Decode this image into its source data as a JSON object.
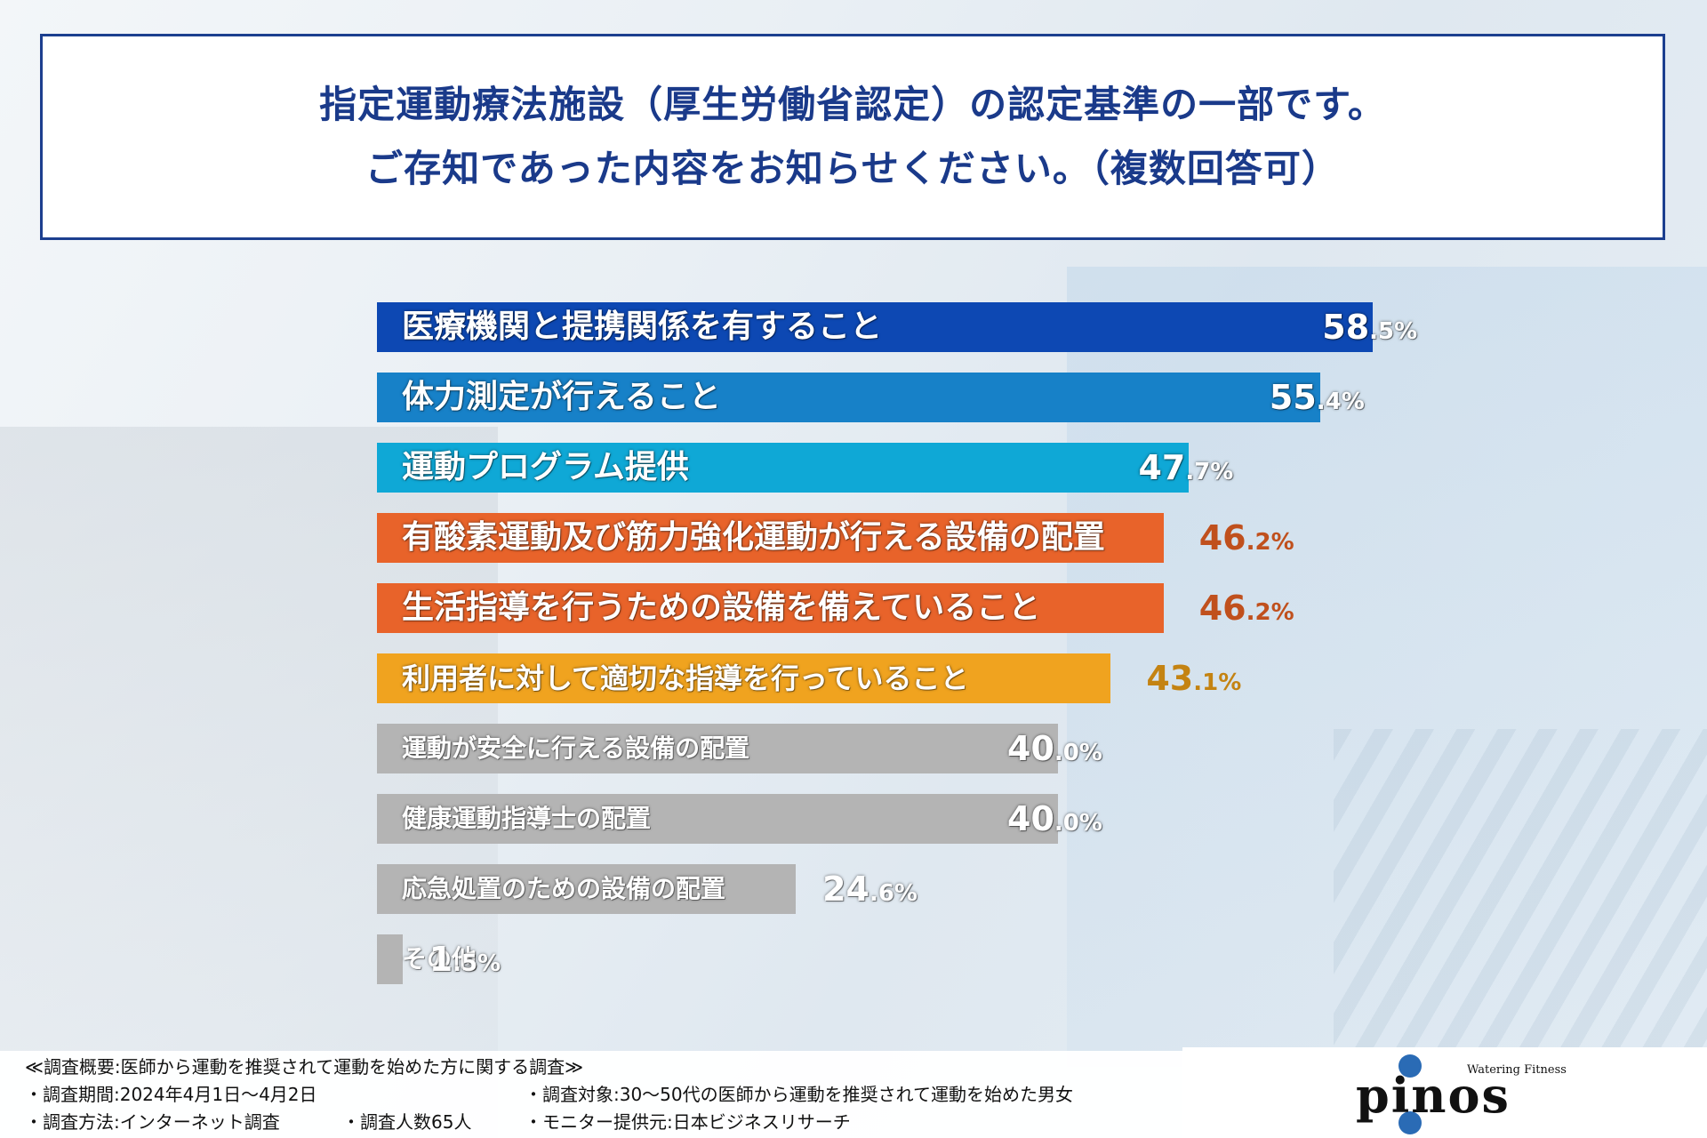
{
  "title": {
    "line1": "指定運動療法施設（厚生労働省認定）の認定基準の一部です。",
    "line2": "ご存知であった内容をお知らせください。（複数回答可）"
  },
  "chart_data": {
    "type": "bar",
    "orientation": "horizontal",
    "unit": "%",
    "categories": [
      "医療機関と提携関係を有すること",
      "体力測定が行えること",
      "運動プログラム提供",
      "有酸素運動及び筋力強化運動が行える設備の配置",
      "生活指導を行うための設備を備えていること",
      "利用者に対して適切な指導を行っていること",
      "運動が安全に行える設備の配置",
      "健康運動指導士の配置",
      "応急処置のための設備の配置",
      "その他"
    ],
    "values": [
      58.5,
      55.4,
      47.7,
      46.2,
      46.2,
      43.1,
      40.0,
      40.0,
      24.6,
      1.5
    ],
    "value_labels": [
      {
        "int": "58",
        "dec": ".5%"
      },
      {
        "int": "55",
        "dec": ".4%"
      },
      {
        "int": "47",
        "dec": ".7%"
      },
      {
        "int": "46",
        "dec": ".2%"
      },
      {
        "int": "46",
        "dec": ".2%"
      },
      {
        "int": "43",
        "dec": ".1%"
      },
      {
        "int": "40",
        "dec": ".0%"
      },
      {
        "int": "40",
        "dec": ".0%"
      },
      {
        "int": "24",
        "dec": ".6%"
      },
      {
        "int": "1",
        "dec": ".5%"
      }
    ],
    "colors": [
      "#0d48b3",
      "#1781c8",
      "#0fa8d6",
      "#e8632a",
      "#e8632a",
      "#f0a31f",
      "#b4b4b4",
      "#b4b4b4",
      "#b4b4b4",
      "#b4b4b4"
    ],
    "value_colors": [
      "#ffffff",
      "#ffffff",
      "#ffffff",
      "#c0501d",
      "#c0501d",
      "#c48312",
      "#ffffff",
      "#ffffff",
      "#ffffff",
      "#ffffff"
    ],
    "xlim": [
      0,
      60
    ],
    "legend": "none"
  },
  "footer": {
    "overview": "≪調査概要:医師から運動を推奨されて運動を始めた方に関する調査≫",
    "period": "・調査期間:2024年4月1日～4月2日",
    "target": "・調査対象:30～50代の医師から運動を推奨されて運動を始めた男女",
    "method": "・調査方法:インターネット調査",
    "count": "・調査人数65人",
    "monitor": "・モニター提供元:日本ビジネスリサーチ"
  },
  "logo": {
    "word": "pinos",
    "tagline": "Watering Fitness"
  }
}
